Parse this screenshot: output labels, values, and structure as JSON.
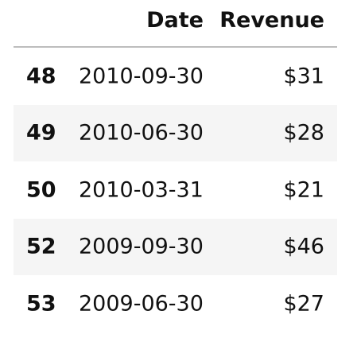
{
  "table": {
    "columns": [
      "",
      "Date",
      "Revenue"
    ],
    "rows": [
      {
        "index": "48",
        "date": "2010-09-30",
        "revenue": "$31"
      },
      {
        "index": "49",
        "date": "2010-06-30",
        "revenue": "$28"
      },
      {
        "index": "50",
        "date": "2010-03-31",
        "revenue": "$21"
      },
      {
        "index": "52",
        "date": "2009-09-30",
        "revenue": "$46"
      },
      {
        "index": "53",
        "date": "2009-06-30",
        "revenue": "$27"
      }
    ]
  }
}
